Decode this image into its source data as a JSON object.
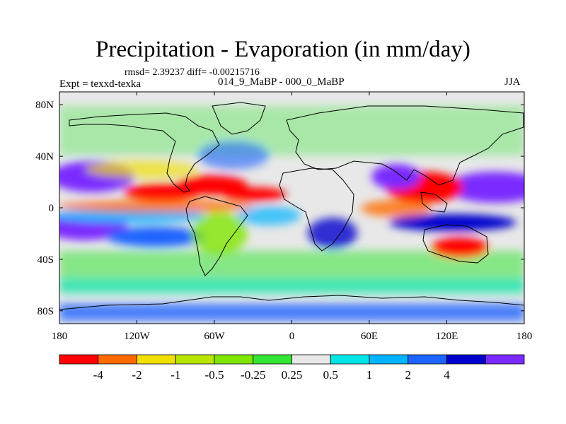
{
  "header": {
    "title": "Precipitation - Evaporation (in mm/day)",
    "stats": "rmsd= 2.39237 diff= -0.00215716",
    "expt": "Expt = texxd-texka",
    "case": "014_9_MaBP - 000_0_MaBP",
    "season": "JJA"
  },
  "chart_data": {
    "type": "heatmap",
    "title": "Precipitation - Evaporation (in mm/day)",
    "subtitle": "014_9_MaBP - 000_0_MaBP",
    "season": "JJA",
    "rmsd": 2.39237,
    "diff": -0.00215716,
    "xlabel": "",
    "ylabel": "",
    "xlim": [
      -180,
      180
    ],
    "ylim": [
      -90,
      90
    ],
    "x_ticks": [
      {
        "value": -180,
        "label": "180"
      },
      {
        "value": -120,
        "label": "120W"
      },
      {
        "value": -60,
        "label": "60W"
      },
      {
        "value": 0,
        "label": "0"
      },
      {
        "value": 60,
        "label": "60E"
      },
      {
        "value": 120,
        "label": "120E"
      },
      {
        "value": 180,
        "label": "180"
      }
    ],
    "y_ticks": [
      {
        "value": 80,
        "label": "80N"
      },
      {
        "value": 40,
        "label": "40N"
      },
      {
        "value": 0,
        "label": "0"
      },
      {
        "value": -40,
        "label": "40S"
      },
      {
        "value": -80,
        "label": "80S"
      }
    ],
    "colorbar": {
      "colors": [
        "#ff0000",
        "#ff6a00",
        "#f0e000",
        "#b8e600",
        "#7fe600",
        "#33e633",
        "#e8e8e8",
        "#00e6e6",
        "#00b4ff",
        "#1e64ff",
        "#0000cd",
        "#7a2aff"
      ],
      "levels": [
        "-4",
        "-2",
        "-1",
        "-0.5",
        "-0.25",
        "0.25",
        "0.5",
        "1",
        "2",
        "4"
      ]
    },
    "features": [
      {
        "lon": -140,
        "lat": 12,
        "value": -5,
        "region": "E. tropical Pacific ITCZ (red)"
      },
      {
        "lon": -95,
        "lat": 15,
        "value": -5,
        "region": "Central America (red)"
      },
      {
        "lon": -55,
        "lat": 14,
        "value": -5,
        "region": "Tropical Atlantic (red)"
      },
      {
        "lon": 130,
        "lat": 15,
        "value": -5,
        "region": "W. Pacific (red)"
      },
      {
        "lon": 170,
        "lat": 15,
        "value": 5,
        "region": "Central Pacific (purple)"
      },
      {
        "lon": 85,
        "lat": 20,
        "value": 5,
        "region": "Indian monsoon (purple)"
      },
      {
        "lon": -150,
        "lat": -10,
        "value": 5,
        "region": "S. Pacific (purple)"
      },
      {
        "lon": 20,
        "lat": -10,
        "value": 3,
        "region": "Central Africa (blue)"
      },
      {
        "lon": 130,
        "lat": -25,
        "value": -5,
        "region": "Australia (red)"
      }
    ]
  }
}
